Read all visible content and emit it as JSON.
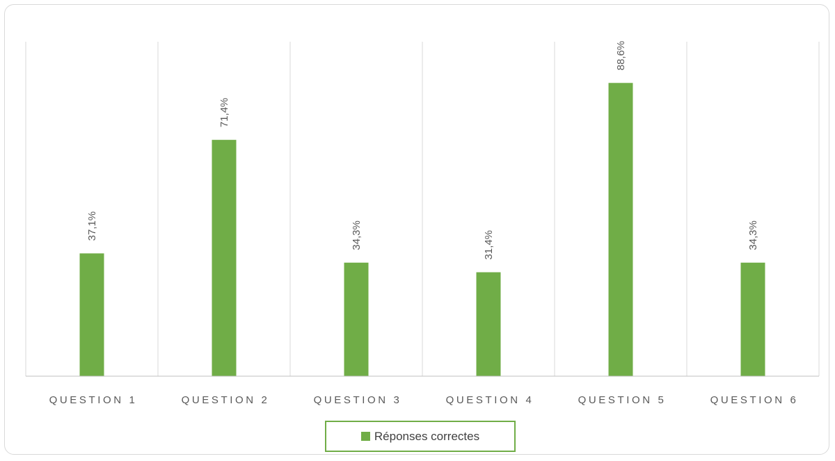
{
  "chart_data": {
    "type": "bar",
    "categories": [
      "QUESTION 1",
      "QUESTION 2",
      "QUESTION 3",
      "QUESTION 4",
      "QUESTION 5",
      "QUESTION 6"
    ],
    "series": [
      {
        "name": "Réponses correctes",
        "values": [
          37.1,
          71.4,
          34.3,
          31.4,
          88.6,
          34.3
        ],
        "labels": [
          "37,1%",
          "71,4%",
          "34,3%",
          "31,4%",
          "88,6%",
          "34,3%"
        ]
      }
    ],
    "ylim": [
      0,
      100
    ],
    "grid": "vertical category separators",
    "legend_position": "bottom",
    "colors": {
      "bar": "#70ad47",
      "gridline": "#d9d9d9",
      "axis": "#bfbfbf",
      "text": "#595959"
    }
  }
}
